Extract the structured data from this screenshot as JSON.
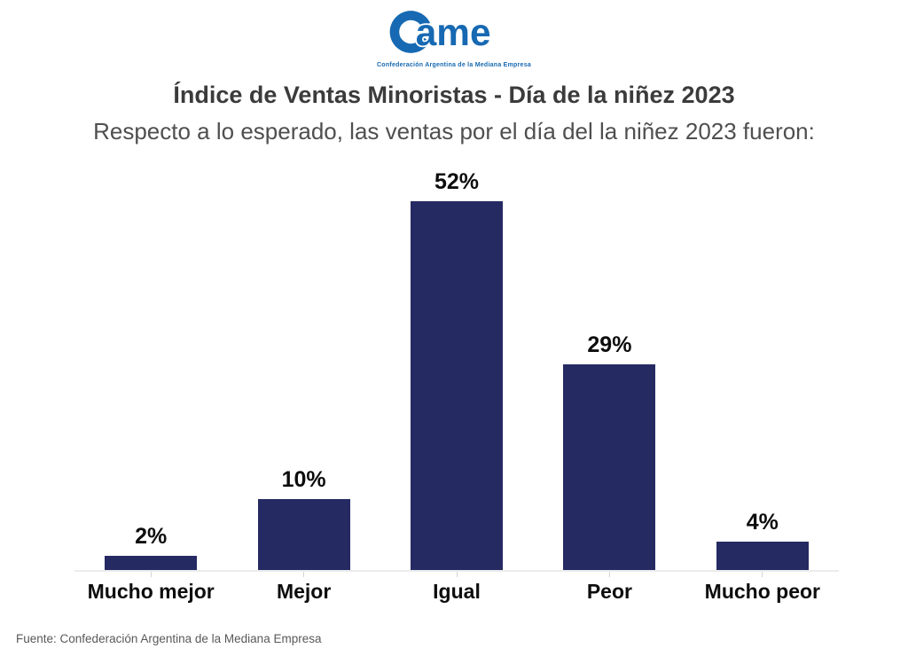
{
  "logo": {
    "text": "Came",
    "mark_text": "ame",
    "tagline": "Confederación Argentina de la Mediana Empresa",
    "color": "#1669B2"
  },
  "header": {
    "title": "Índice de Ventas Minoristas - Día de la niñez 2023",
    "subtitle": "Respecto a lo esperado, las ventas por el día del la niñez 2023 fueron:"
  },
  "chart_data": {
    "type": "bar",
    "title": "Índice de Ventas Minoristas - Día de la niñez 2023",
    "subtitle": "Respecto a lo esperado, las ventas por el día del la niñez 2023 fueron:",
    "categories": [
      "Mucho mejor",
      "Mejor",
      "Igual",
      "Peor",
      "Mucho peor"
    ],
    "values": [
      2,
      10,
      52,
      29,
      4
    ],
    "value_labels": [
      "2%",
      "10%",
      "52%",
      "29%",
      "4%"
    ],
    "bar_color": "#252A63",
    "axis_line_color": "#ECECEC",
    "xlabel": "",
    "ylabel": "",
    "ylim": [
      0,
      55
    ],
    "grid": false,
    "legend": false,
    "value_label_position": "above-bar"
  },
  "footer": {
    "source": "Fuente: Confederación Argentina de la Mediana Empresa"
  }
}
